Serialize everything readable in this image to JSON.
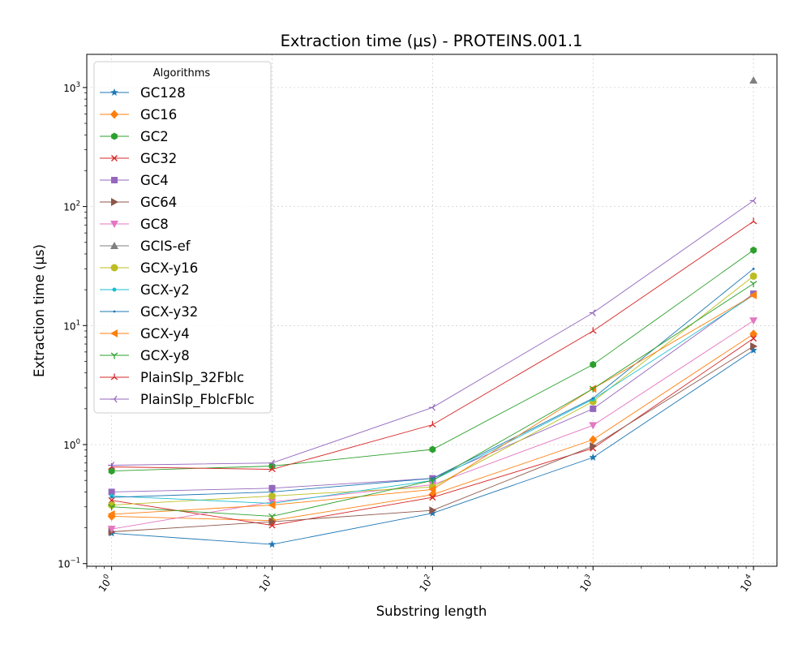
{
  "chart_data": {
    "type": "line",
    "title": "Extraction time (μs) - PROTEINS.001.1",
    "xlabel": "Substring length",
    "ylabel": "Extraction time (μs)",
    "xscale": "log",
    "yscale": "log",
    "xlim": [
      0.7,
      14000
    ],
    "ylim": [
      0.095,
      1900
    ],
    "grid": true,
    "x": [
      1,
      10,
      100,
      1000,
      10000
    ],
    "x_tick_labels": [
      {
        "base": "10",
        "exp": "0"
      },
      {
        "base": "10",
        "exp": "1"
      },
      {
        "base": "10",
        "exp": "2"
      },
      {
        "base": "10",
        "exp": "3"
      },
      {
        "base": "10",
        "exp": "4"
      }
    ],
    "y_tick_labels": [
      {
        "base": "10",
        "exp": "−1"
      },
      {
        "base": "10",
        "exp": "0"
      },
      {
        "base": "10",
        "exp": "1"
      },
      {
        "base": "10",
        "exp": "2"
      },
      {
        "base": "10",
        "exp": "3"
      }
    ],
    "legend": {
      "title": "Algorithms",
      "position": "upper-left"
    },
    "series": [
      {
        "name": "GC128",
        "color": "#1f77b4",
        "marker": "star",
        "values": [
          0.18,
          0.145,
          0.265,
          0.78,
          6.2
        ]
      },
      {
        "name": "GC16",
        "color": "#ff7f0e",
        "marker": "diamond",
        "values": [
          0.25,
          0.23,
          0.38,
          1.1,
          8.5
        ]
      },
      {
        "name": "GC2",
        "color": "#2ca02c",
        "marker": "hexagon",
        "values": [
          0.6,
          0.66,
          0.91,
          4.7,
          43
        ]
      },
      {
        "name": "GC32",
        "color": "#d62728",
        "marker": "x",
        "values": [
          0.34,
          0.21,
          0.36,
          0.93,
          7.8
        ]
      },
      {
        "name": "GC4",
        "color": "#9467bd",
        "marker": "square",
        "values": [
          0.4,
          0.43,
          0.52,
          2.0,
          18.5
        ]
      },
      {
        "name": "GC64",
        "color": "#8c564b",
        "marker": "triangle-right",
        "values": [
          0.185,
          0.225,
          0.28,
          0.97,
          6.7
        ]
      },
      {
        "name": "GC8",
        "color": "#e377c2",
        "marker": "triangle-down",
        "values": [
          0.195,
          0.33,
          0.46,
          1.45,
          11
        ]
      },
      {
        "name": "GCIS-ef",
        "color": "#7f7f7f",
        "marker": "triangle-up",
        "values": [
          null,
          null,
          null,
          null,
          1150
        ]
      },
      {
        "name": "GCX-y16",
        "color": "#bcbd22",
        "marker": "circle",
        "values": [
          0.31,
          0.37,
          0.44,
          2.3,
          26
        ]
      },
      {
        "name": "GCX-y2",
        "color": "#17becf",
        "marker": "dot",
        "values": [
          0.37,
          0.32,
          0.5,
          2.4,
          18
        ]
      },
      {
        "name": "GCX-y32",
        "color": "#1f77b4",
        "marker": "point",
        "values": [
          0.36,
          0.4,
          0.52,
          2.45,
          30
        ]
      },
      {
        "name": "GCX-y4",
        "color": "#ff7f0e",
        "marker": "triangle-left",
        "values": [
          0.26,
          0.31,
          0.42,
          2.95,
          18
        ]
      },
      {
        "name": "GCX-y8",
        "color": "#2ca02c",
        "marker": "tri-down",
        "values": [
          0.3,
          0.25,
          0.5,
          2.95,
          22.5
        ]
      },
      {
        "name": "PlainSlp_32Fblc",
        "color": "#d62728",
        "marker": "tri-up",
        "values": [
          0.65,
          0.62,
          1.47,
          9.0,
          75
        ]
      },
      {
        "name": "PlainSlp_FblcFblc",
        "color": "#9467bd",
        "marker": "tri-left",
        "values": [
          0.67,
          0.7,
          2.05,
          12.8,
          112
        ]
      }
    ]
  }
}
